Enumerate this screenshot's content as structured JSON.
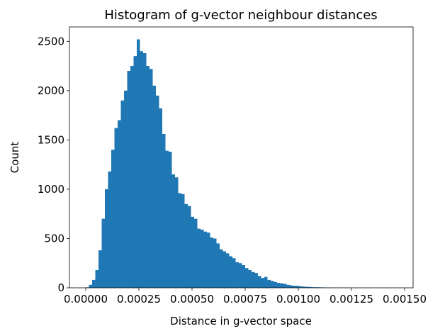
{
  "chart_data": {
    "type": "histogram",
    "title": "Histogram of g-vector neighbour distances",
    "x_label": "Distance in g-vector space",
    "y_label": "Count",
    "color": "#1f77b4",
    "grid": false,
    "bins": [
      0,
      1.5e-05,
      3e-05,
      4.5e-05,
      6e-05,
      7.5e-05,
      9e-05,
      0.000105,
      0.00012,
      0.000135,
      0.00015,
      0.000165,
      0.00018,
      0.000195,
      0.00021,
      0.000225,
      0.00024,
      0.000255,
      0.00027,
      0.000285,
      0.0003,
      0.000315,
      0.00033,
      0.000345,
      0.00036,
      0.000375,
      0.00039,
      0.000405,
      0.00042,
      0.000435,
      0.00045,
      0.000465,
      0.00048,
      0.000495,
      0.00051,
      0.000525,
      0.00054,
      0.000555,
      0.00057,
      0.000585,
      0.0006,
      0.000615,
      0.00063,
      0.000645,
      0.00066,
      0.000675,
      0.00069,
      0.000705,
      0.00072,
      0.000735,
      0.00075,
      0.000765,
      0.00078,
      0.000795,
      0.00081,
      0.000825,
      0.00084,
      0.000855,
      0.00087,
      0.000885,
      0.0009,
      0.000915,
      0.00093,
      0.000945,
      0.00096,
      0.000975,
      0.00099,
      0.001005,
      0.00102,
      0.001035,
      0.00105,
      0.001065,
      0.00108,
      0.001095,
      0.00111,
      0.001125,
      0.00114,
      0.001155,
      0.00117,
      0.001185,
      0.0012,
      0.001215,
      0.00123,
      0.001245,
      0.00126,
      0.001275,
      0.00129,
      0.001305,
      0.00132,
      0.001335,
      0.00135,
      0.001365,
      0.00138,
      0.001395,
      0.00141,
      0.001425,
      0.00144,
      0.001455,
      0.00147,
      0.001485,
      0.0015
    ],
    "values": [
      5,
      30,
      80,
      180,
      380,
      700,
      1000,
      1180,
      1400,
      1620,
      1700,
      1900,
      2000,
      2200,
      2250,
      2350,
      2520,
      2400,
      2380,
      2250,
      2220,
      2050,
      1950,
      1820,
      1560,
      1390,
      1380,
      1150,
      1120,
      960,
      950,
      850,
      830,
      720,
      700,
      600,
      590,
      570,
      560,
      510,
      500,
      450,
      390,
      370,
      350,
      320,
      300,
      260,
      250,
      230,
      200,
      180,
      160,
      150,
      120,
      100,
      110,
      80,
      70,
      60,
      50,
      45,
      40,
      30,
      25,
      20,
      20,
      15,
      12,
      10,
      8,
      6,
      6,
      5,
      4,
      3,
      3,
      2,
      2,
      2,
      1,
      1,
      1,
      1,
      1,
      0,
      1,
      0,
      0,
      1,
      0,
      0,
      0,
      0,
      0,
      0,
      0,
      0,
      0,
      1
    ],
    "xlim": [
      -7.67e-05,
      0.00154
    ],
    "ylim": [
      0,
      2646
    ],
    "xticks": [
      {
        "value": 0,
        "label": "0.00000"
      },
      {
        "value": 0.00025,
        "label": "0.00025"
      },
      {
        "value": 0.0005,
        "label": "0.00050"
      },
      {
        "value": 0.00075,
        "label": "0.00075"
      },
      {
        "value": 0.001,
        "label": "0.00100"
      },
      {
        "value": 0.00125,
        "label": "0.00125"
      },
      {
        "value": 0.0015,
        "label": "0.00150"
      }
    ],
    "yticks": [
      0,
      500,
      1000,
      1500,
      2000,
      2500
    ]
  }
}
